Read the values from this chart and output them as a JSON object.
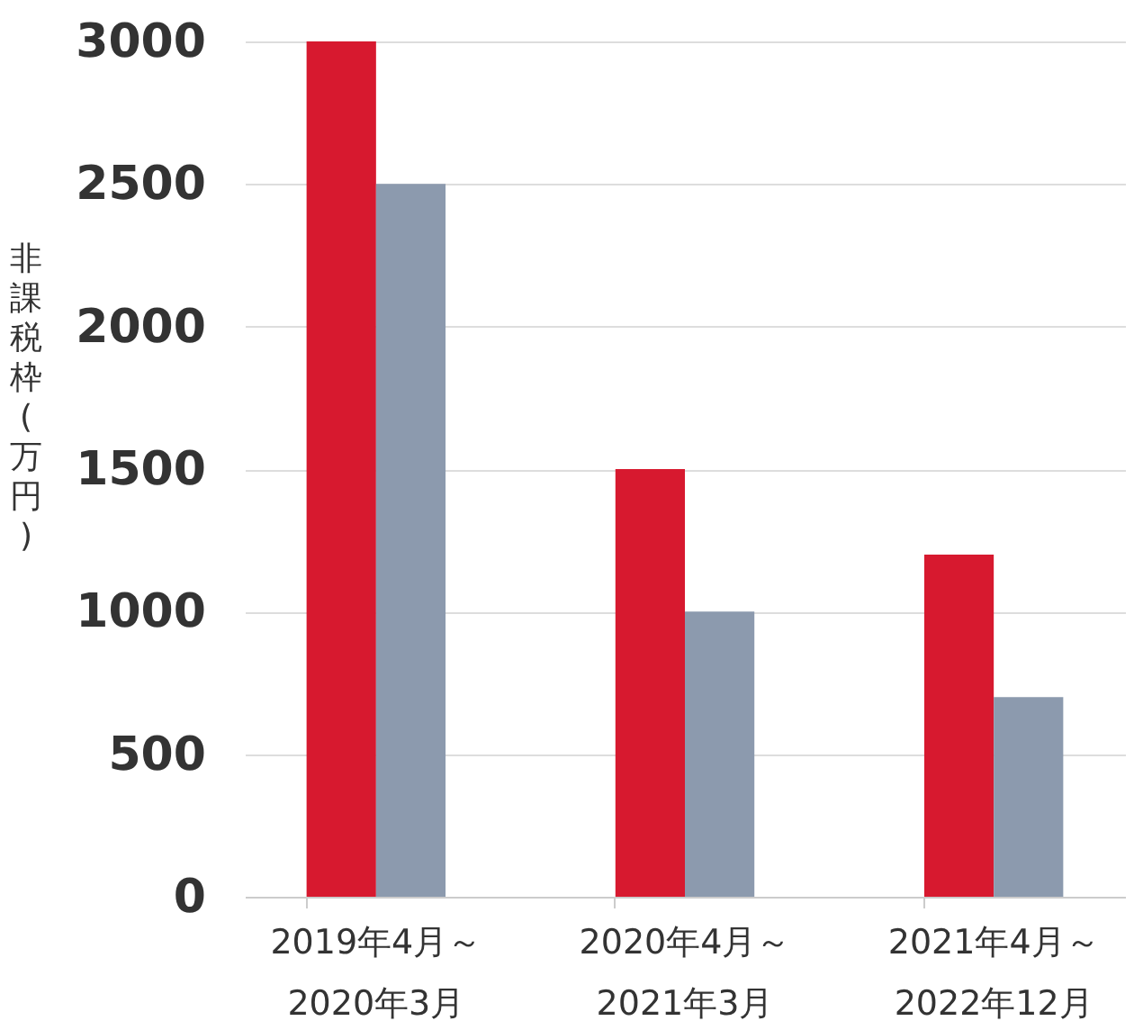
{
  "chart_data": {
    "type": "bar",
    "ylabel": "非課税枠(万円)",
    "categories": [
      "2019年4月～\n2020年3月",
      "2020年4月～\n2021年3月",
      "2021年4月～\n2022年12月"
    ],
    "series": [
      {
        "color": "#d7192f",
        "values": [
          3000,
          1500,
          1200
        ]
      },
      {
        "color": "#8c9aae",
        "values": [
          2500,
          1000,
          700
        ]
      }
    ],
    "ylim": [
      0,
      3000
    ],
    "yticks": [
      0,
      500,
      1000,
      1500,
      2000,
      2500,
      3000
    ],
    "grid": "y",
    "legend": false
  }
}
